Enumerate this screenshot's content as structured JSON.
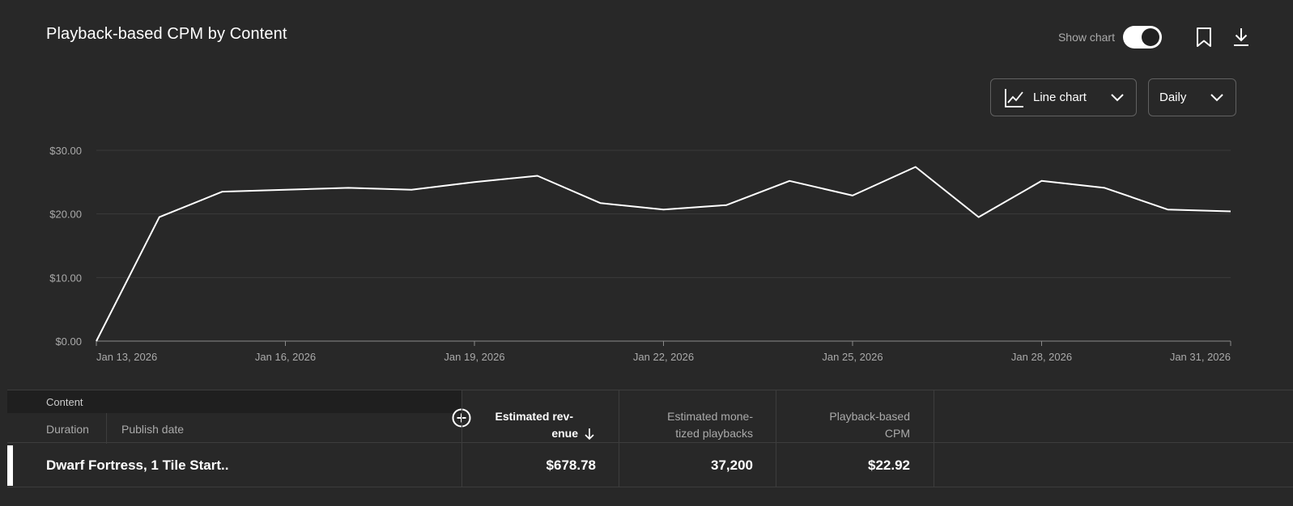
{
  "header": {
    "title": "Playback-based CPM by Content",
    "show_chart_label": "Show chart",
    "show_chart_on": true
  },
  "controls": {
    "chart_type": "Line chart",
    "period": "Daily"
  },
  "icons": {
    "bookmark": "bookmark-icon",
    "download": "download-icon",
    "line_chart": "line-chart-icon",
    "chevron": "chevron-down-icon",
    "add_column": "add-circle-icon",
    "sort": "arrow-down-icon"
  },
  "colors": {
    "background": "#282828",
    "line": "#ffffff",
    "grid": "#3a3a3a",
    "muted_text": "#aaaaaa"
  },
  "chart_data": {
    "type": "line",
    "ylim": [
      0,
      30
    ],
    "y_ticks": [
      {
        "value": 0,
        "label": "$0.00"
      },
      {
        "value": 10,
        "label": "$10.00"
      },
      {
        "value": 20,
        "label": "$20.00"
      },
      {
        "value": 30,
        "label": "$30.00"
      }
    ],
    "x_ticks": [
      {
        "day": 13,
        "label": "Jan 13, 2026"
      },
      {
        "day": 16,
        "label": "Jan 16, 2026"
      },
      {
        "day": 19,
        "label": "Jan 19, 2026"
      },
      {
        "day": 22,
        "label": "Jan 22, 2026"
      },
      {
        "day": 25,
        "label": "Jan 25, 2026"
      },
      {
        "day": 28,
        "label": "Jan 28, 2026"
      },
      {
        "day": 31,
        "label": "Jan 31, 2026"
      }
    ],
    "grid": true,
    "points": [
      {
        "day": 13,
        "value": 0.0
      },
      {
        "day": 14,
        "value": 19.5
      },
      {
        "day": 15,
        "value": 23.5
      },
      {
        "day": 16,
        "value": 23.8
      },
      {
        "day": 17,
        "value": 24.1
      },
      {
        "day": 18,
        "value": 23.8
      },
      {
        "day": 19,
        "value": 25.0
      },
      {
        "day": 20,
        "value": 26.0
      },
      {
        "day": 21,
        "value": 21.7
      },
      {
        "day": 22,
        "value": 20.7
      },
      {
        "day": 23,
        "value": 21.4
      },
      {
        "day": 24,
        "value": 25.2
      },
      {
        "day": 25,
        "value": 22.9
      },
      {
        "day": 26,
        "value": 27.4
      },
      {
        "day": 27,
        "value": 19.5
      },
      {
        "day": 28,
        "value": 25.2
      },
      {
        "day": 29,
        "value": 24.1
      },
      {
        "day": 30,
        "value": 20.7
      },
      {
        "day": 31,
        "value": 20.4
      }
    ]
  },
  "table": {
    "content_label": "Content",
    "duration_label": "Duration",
    "publish_date_label": "Publish date",
    "columns": [
      {
        "line1": "Estimated rev-",
        "line2": "enue",
        "active": true
      },
      {
        "line1": "Estimated mone-",
        "line2": "tized playbacks",
        "active": false
      },
      {
        "line1": "Playback-based",
        "line2": "CPM",
        "active": false
      }
    ],
    "rows": [
      {
        "title": "Dwarf Fortress, 1 Tile Start..",
        "revenue": "$678.78",
        "playbacks": "37,200",
        "cpm": "$22.92"
      }
    ]
  }
}
